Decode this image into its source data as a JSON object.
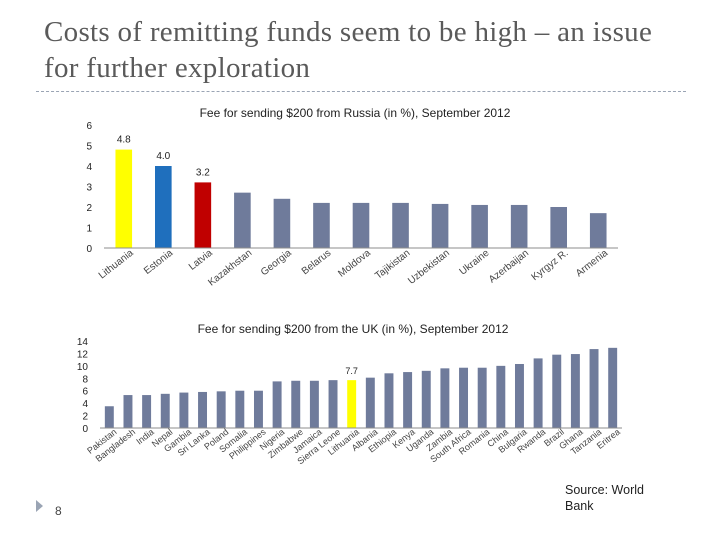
{
  "slide": {
    "title": "Costs of remitting funds seem to be high – an issue for further exploration",
    "page_number": "8",
    "source": "Source: World Bank"
  },
  "colors": {
    "default_bar": "#6f7b9b",
    "highlight_yellow": "#ffff00",
    "highlight_blue": "#1f6fbd",
    "highlight_red": "#c00000",
    "axis": "#8c8c8c"
  },
  "chart_data": [
    {
      "type": "bar",
      "title": "Fee for sending $200 from Russia (in %), September 2012",
      "categories": [
        "Lithuania",
        "Estonia",
        "Latvia",
        "Kazakhstan",
        "Georgia",
        "Belarus",
        "Moldova",
        "Tajikistan",
        "Uzbekistan",
        "Ukraine",
        "Azerbaijan",
        "Kyrgyz R.",
        "Armenia"
      ],
      "values": [
        4.8,
        4.0,
        3.2,
        2.7,
        2.4,
        2.2,
        2.2,
        2.2,
        2.15,
        2.1,
        2.1,
        2.0,
        1.7
      ],
      "data_labels": [
        "4.8",
        "4.0",
        "3.2",
        "",
        "",
        "",
        "",
        "",
        "",
        "",
        "",
        "",
        ""
      ],
      "bar_colors": [
        "#ffff00",
        "#1f6fbd",
        "#c00000",
        "#6f7b9b",
        "#6f7b9b",
        "#6f7b9b",
        "#6f7b9b",
        "#6f7b9b",
        "#6f7b9b",
        "#6f7b9b",
        "#6f7b9b",
        "#6f7b9b",
        "#6f7b9b"
      ],
      "ylim": [
        0,
        6
      ],
      "yticks": [
        "0",
        "1",
        "2",
        "3",
        "4",
        "5",
        "6"
      ],
      "xlabel": "",
      "ylabel": "",
      "grid": false
    },
    {
      "type": "bar",
      "title": "Fee for sending $200 from the UK (in %), September 2012",
      "categories": [
        "Pakistan",
        "Bangladesh",
        "India",
        "Nepal",
        "Gambia",
        "Sri Lanka",
        "Poland",
        "Somalia",
        "Philippines",
        "Nigeria",
        "Zimbabwe",
        "Jamaica",
        "Sierra Leone",
        "Lithuania",
        "Albania",
        "Ethiopia",
        "Kenya",
        "Uganda",
        "Zambia",
        "South Africa",
        "Romania",
        "China",
        "Bulgaria",
        "Rwanda",
        "Brazil",
        "Ghana",
        "Tanzania",
        "Eritrea"
      ],
      "values": [
        3.5,
        5.3,
        5.3,
        5.5,
        5.7,
        5.8,
        5.9,
        6.0,
        6.0,
        7.5,
        7.6,
        7.6,
        7.7,
        7.7,
        8.1,
        8.8,
        9.0,
        9.2,
        9.6,
        9.7,
        9.7,
        10.0,
        10.3,
        11.2,
        11.8,
        11.9,
        12.7,
        12.9
      ],
      "data_labels": [
        "",
        "",
        "",
        "",
        "",
        "",
        "",
        "",
        "",
        "",
        "",
        "",
        "",
        "7.7",
        "",
        "",
        "",
        "",
        "",
        "",
        "",
        "",
        "",
        "",
        "",
        "",
        "",
        ""
      ],
      "bar_colors": [
        "#6f7b9b",
        "#6f7b9b",
        "#6f7b9b",
        "#6f7b9b",
        "#6f7b9b",
        "#6f7b9b",
        "#6f7b9b",
        "#6f7b9b",
        "#6f7b9b",
        "#6f7b9b",
        "#6f7b9b",
        "#6f7b9b",
        "#6f7b9b",
        "#ffff00",
        "#6f7b9b",
        "#6f7b9b",
        "#6f7b9b",
        "#6f7b9b",
        "#6f7b9b",
        "#6f7b9b",
        "#6f7b9b",
        "#6f7b9b",
        "#6f7b9b",
        "#6f7b9b",
        "#6f7b9b",
        "#6f7b9b",
        "#6f7b9b",
        "#6f7b9b"
      ],
      "ylim": [
        0,
        14
      ],
      "yticks": [
        "0",
        "2",
        "4",
        "6",
        "8",
        "10",
        "12",
        "14"
      ],
      "xlabel": "",
      "ylabel": "",
      "grid": false
    }
  ]
}
